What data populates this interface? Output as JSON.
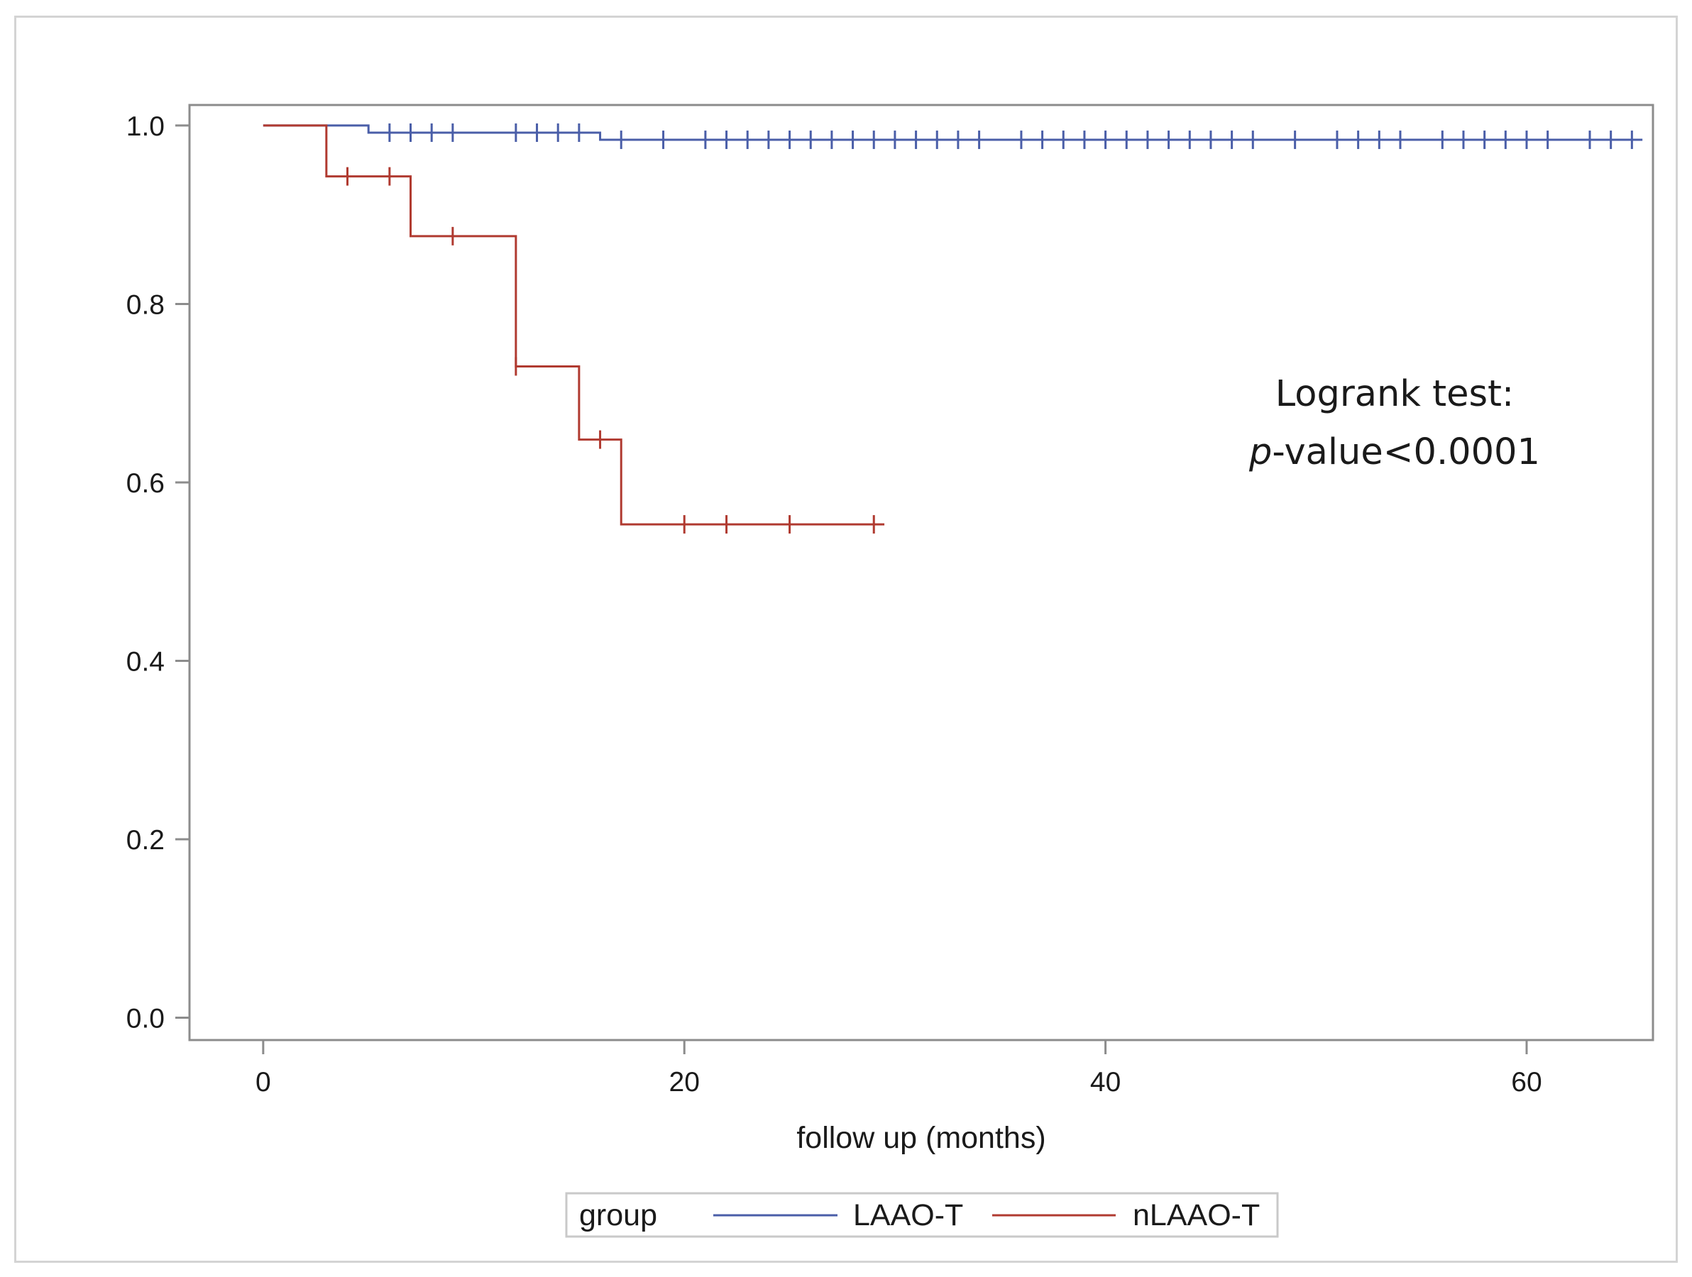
{
  "chart_data": {
    "type": "line",
    "subtype": "kaplan-meier",
    "title": "",
    "xlabel": "follow up (months)",
    "ylabel": "",
    "xlim": [
      -3.5,
      66
    ],
    "ylim": [
      -0.025,
      1.023
    ],
    "xticks": [
      0,
      20,
      40,
      60
    ],
    "xtick_labels": [
      "0",
      "20",
      "40",
      "60"
    ],
    "yticks": [
      0.0,
      0.2,
      0.4,
      0.6,
      0.8,
      1.0
    ],
    "ytick_labels": [
      "0.0",
      "0.2",
      "0.4",
      "0.6",
      "0.8",
      "1.0"
    ],
    "annotation": {
      "line1": "Logrank test:",
      "line2_italic": "p",
      "line2_rest": "-value<0.0001"
    },
    "legend": {
      "title": "group",
      "placement": "bottom-center"
    },
    "series": [
      {
        "name": "LAAO-T",
        "color": "#4a5ea8",
        "steps": [
          [
            0,
            1.0
          ],
          [
            5,
            0.992
          ],
          [
            16,
            0.984
          ],
          [
            65.5,
            0.984
          ]
        ],
        "censored": [
          6,
          7,
          8,
          9,
          12,
          13,
          14,
          15,
          17,
          19,
          21,
          22,
          23,
          24,
          25,
          26,
          27,
          28,
          29,
          30,
          31,
          32,
          33,
          34,
          36,
          37,
          38,
          39,
          40,
          41,
          42,
          43,
          44,
          45,
          46,
          47,
          49,
          51,
          52,
          53,
          54,
          56,
          57,
          58,
          59,
          60,
          61,
          63,
          64,
          65
        ]
      },
      {
        "name": "nLAAO-T",
        "color": "#b03a30",
        "steps": [
          [
            0,
            1.0
          ],
          [
            3,
            0.943
          ],
          [
            7,
            0.876
          ],
          [
            12,
            0.73
          ],
          [
            15,
            0.648
          ],
          [
            17,
            0.553
          ],
          [
            29.5,
            0.553
          ]
        ],
        "censored": [
          4,
          6,
          9,
          12,
          16,
          20,
          22,
          25,
          29
        ]
      }
    ]
  }
}
